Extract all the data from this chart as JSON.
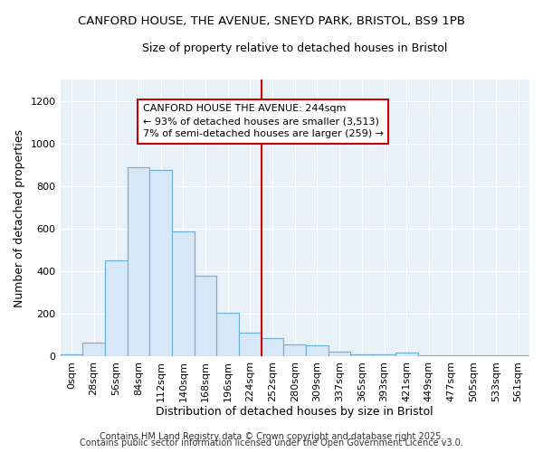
{
  "title_line1": "CANFORD HOUSE, THE AVENUE, SNEYD PARK, BRISTOL, BS9 1PB",
  "title_line2": "Size of property relative to detached houses in Bristol",
  "xlabel": "Distribution of detached houses by size in Bristol",
  "ylabel": "Number of detached properties",
  "bar_labels": [
    "0sqm",
    "28sqm",
    "56sqm",
    "84sqm",
    "112sqm",
    "140sqm",
    "168sqm",
    "196sqm",
    "224sqm",
    "252sqm",
    "280sqm",
    "309sqm",
    "337sqm",
    "365sqm",
    "393sqm",
    "421sqm",
    "449sqm",
    "477sqm",
    "505sqm",
    "533sqm",
    "561sqm"
  ],
  "bar_values": [
    10,
    65,
    450,
    890,
    875,
    585,
    380,
    205,
    110,
    85,
    55,
    50,
    20,
    10,
    10,
    15,
    5,
    3,
    3,
    3,
    3
  ],
  "bar_color": "#d6e8f7",
  "bar_edge_color": "#6aaed6",
  "vline_color": "#cc0000",
  "annotation_text": "CANFORD HOUSE THE AVENUE: 244sqm\n← 93% of detached houses are smaller (3,513)\n7% of semi-detached houses are larger (259) →",
  "annotation_box_color": "#ffffff",
  "annotation_box_edge": "#cc0000",
  "ylim": [
    0,
    1300
  ],
  "yticks": [
    0,
    200,
    400,
    600,
    800,
    1000,
    1200
  ],
  "fig_background": "#ffffff",
  "plot_background": "#e8f0f8",
  "footer_text1": "Contains HM Land Registry data © Crown copyright and database right 2025.",
  "footer_text2": "Contains public sector information licensed under the Open Government Licence v3.0.",
  "title_fontsize": 9.5,
  "subtitle_fontsize": 9.0,
  "axis_label_fontsize": 9,
  "tick_fontsize": 8,
  "annotation_fontsize": 8,
  "footer_fontsize": 7
}
